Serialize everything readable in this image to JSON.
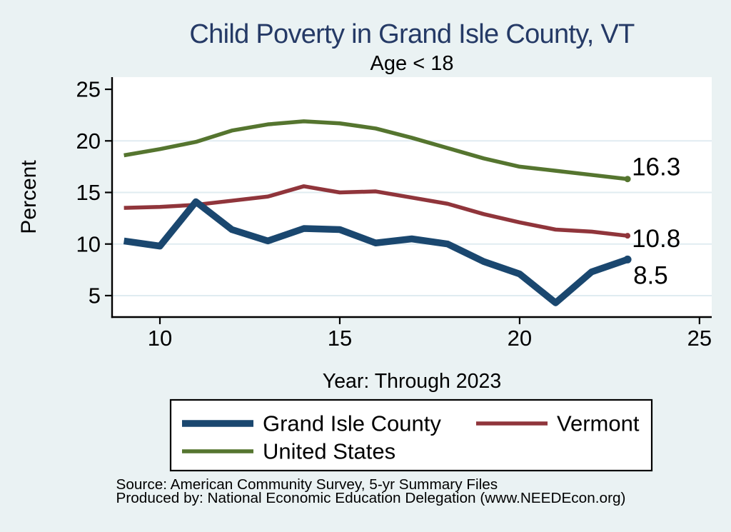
{
  "figure": {
    "background_color": "#eaf2f3",
    "plot_background_color": "#ffffff",
    "grid_color": "#e0ecf1",
    "axis_color": "#000000",
    "title_color": "#253a66",
    "text_color": "#000000"
  },
  "chart_data": {
    "type": "line",
    "title": "Child Poverty in Grand Isle County, VT",
    "subtitle": "Age < 18",
    "xlabel": "Year: Through 2023",
    "ylabel": "Percent",
    "x": [
      9,
      10,
      11,
      12,
      13,
      14,
      15,
      16,
      17,
      18,
      19,
      20,
      21,
      22,
      23
    ],
    "series": [
      {
        "name": "United States",
        "color": "#55752f",
        "line_width": 5.5,
        "values": [
          18.6,
          19.2,
          19.9,
          21.0,
          21.6,
          21.9,
          21.7,
          21.2,
          20.3,
          19.3,
          18.3,
          17.5,
          17.1,
          16.7,
          16.3
        ],
        "end_label": "16.3",
        "end_label_dx": 6,
        "end_label_dy": -17,
        "end_dot_radius": 4.5
      },
      {
        "name": "Vermont",
        "color": "#90353b",
        "line_width": 5.5,
        "values": [
          13.5,
          13.6,
          13.8,
          14.2,
          14.6,
          15.6,
          15.0,
          15.1,
          14.5,
          13.9,
          12.9,
          12.1,
          11.4,
          11.2,
          10.8
        ],
        "end_label": "10.8",
        "end_label_dx": 6,
        "end_label_dy": 4,
        "end_dot_radius": 4
      },
      {
        "name": "Grand Isle County",
        "color": "#1a476f",
        "line_width": 9.5,
        "values": [
          10.3,
          9.8,
          14.1,
          11.4,
          10.3,
          11.5,
          11.4,
          10.1,
          10.5,
          10.0,
          8.3,
          7.1,
          4.3,
          7.3,
          8.5
        ],
        "end_label": "8.5",
        "end_label_dx": 8,
        "end_label_dy": 22,
        "end_dot_radius": 5.5
      }
    ],
    "xlim": [
      8.67,
      25.34
    ],
    "ylim": [
      2.92,
      26.18
    ],
    "xticks": [
      10,
      15,
      20,
      25
    ],
    "xtick_labels": [
      "10",
      "15",
      "20",
      "25"
    ],
    "yticks": [
      5,
      10,
      15,
      20,
      25
    ],
    "ytick_labels": [
      "5",
      "10",
      "15",
      "20",
      "25"
    ],
    "grid_y": [
      5,
      10,
      15,
      20
    ],
    "grid": "horizontal",
    "legend_position": "bottom",
    "legend_order": [
      "Grand Isle County",
      "Vermont",
      "United States"
    ]
  },
  "legend": {
    "items": [
      {
        "label": "Grand Isle County",
        "color": "#1a476f",
        "thickness": 9.5
      },
      {
        "label": "Vermont",
        "color": "#90353b",
        "thickness": 5.5
      },
      {
        "label": "United States",
        "color": "#55752f",
        "thickness": 5.5
      }
    ]
  },
  "notes": {
    "source": "Source: American Community Survey, 5-yr Summary Files",
    "produced_by": "Produced by: National Economic Education Delegation (www.NEEDEcon.org)"
  }
}
